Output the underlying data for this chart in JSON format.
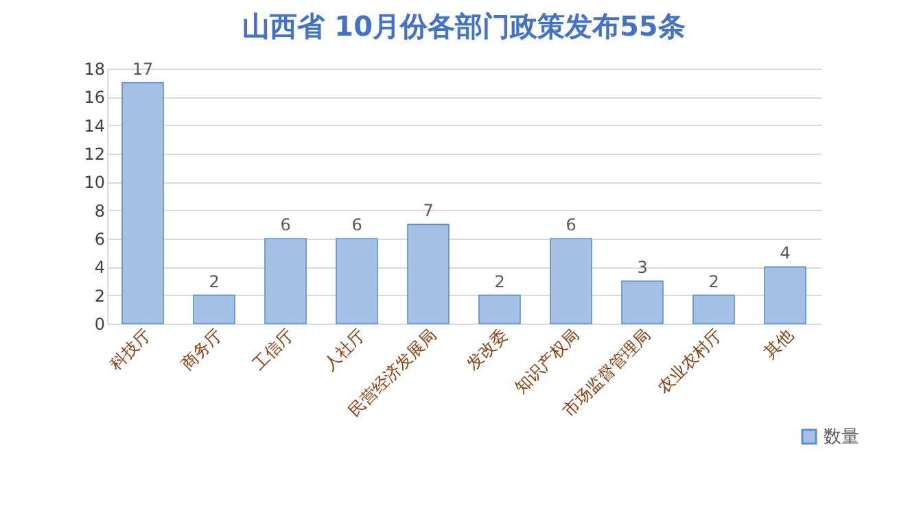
{
  "chart_data": {
    "type": "bar",
    "title": "山西省 10月份各部门政策发布55条",
    "categories": [
      "科技厅",
      "商务厅",
      "工信厅",
      "人社厅",
      "民营经济发展局",
      "发改委",
      "知识产权局",
      "市场监督管理局",
      "农业农村厅",
      "其他"
    ],
    "series": [
      {
        "name": "数量",
        "color": "#a3c1e7",
        "values": [
          17,
          2,
          6,
          6,
          7,
          2,
          6,
          3,
          2,
          4
        ]
      }
    ],
    "ylim": [
      0,
      18
    ],
    "yticks": [
      0,
      2,
      4,
      6,
      8,
      10,
      12,
      14,
      16,
      18
    ],
    "grid": "y",
    "legend": "bottom right",
    "data_labels": true
  }
}
